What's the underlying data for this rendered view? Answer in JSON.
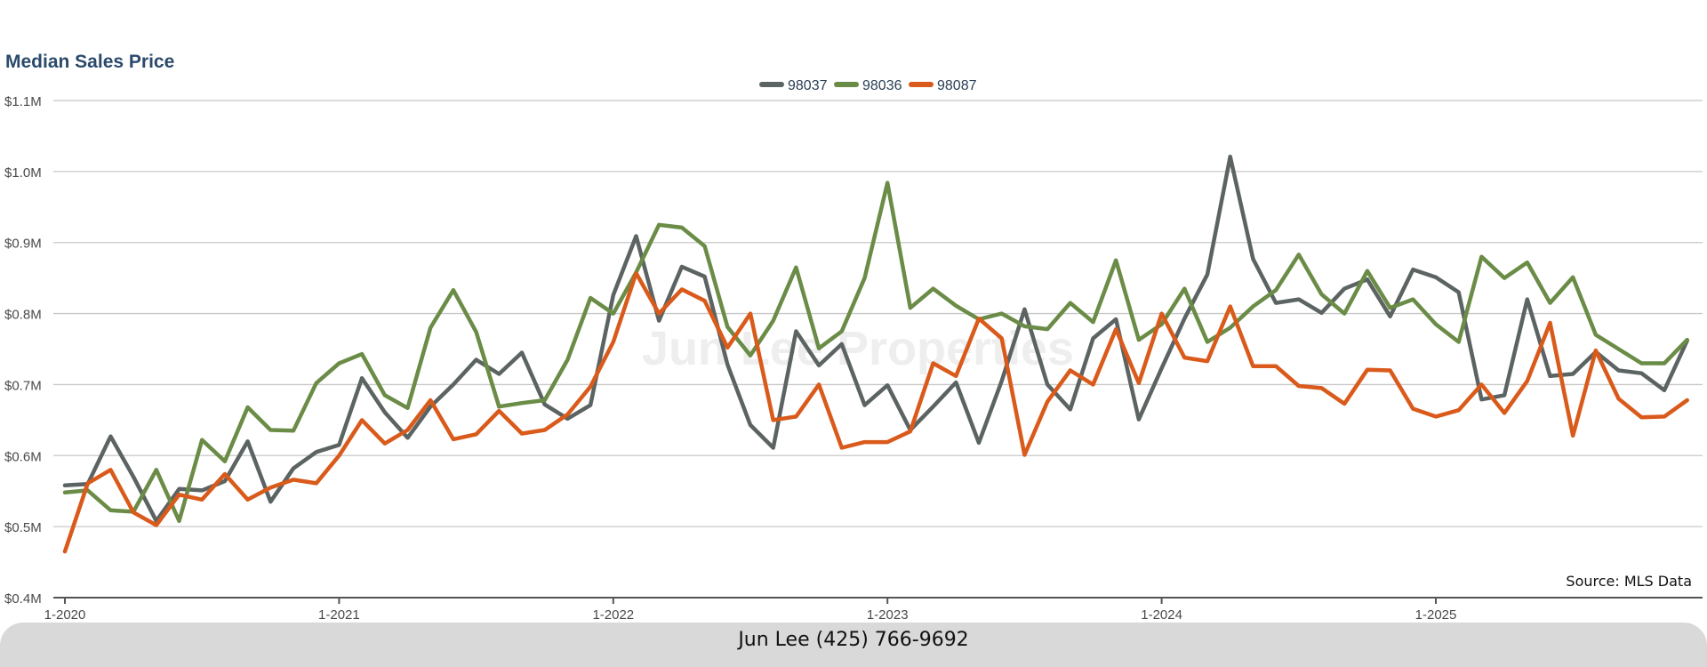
{
  "chart_data": {
    "type": "line",
    "title": "Median Sales Price",
    "source": "Source: MLS Data",
    "watermark": "Jun Lee Properties",
    "xlabel": "",
    "ylabel": "",
    "ylim": [
      0.4,
      1.1
    ],
    "y_ticks": [
      {
        "value": 1.1,
        "label": "$1.1M"
      },
      {
        "value": 1.0,
        "label": "$1.0M"
      },
      {
        "value": 0.9,
        "label": "$0.9M"
      },
      {
        "value": 0.8,
        "label": "$0.8M"
      },
      {
        "value": 0.7,
        "label": "$0.7M"
      },
      {
        "value": 0.6,
        "label": "$0.6M"
      },
      {
        "value": 0.5,
        "label": "$0.5M"
      },
      {
        "value": 0.4,
        "label": "$0.4M"
      }
    ],
    "x_ticks": [
      {
        "index": 0,
        "label": "1-2020"
      },
      {
        "index": 12,
        "label": "1-2021"
      },
      {
        "index": 24,
        "label": "1-2022"
      },
      {
        "index": 36,
        "label": "1-2023"
      },
      {
        "index": 48,
        "label": "1-2024"
      },
      {
        "index": 60,
        "label": "1-2025"
      }
    ],
    "x_range": [
      0,
      71.8
    ],
    "grid": true,
    "legend_position": "top-center",
    "series": [
      {
        "name": "98037",
        "color": "#5c6363",
        "values": [
          0.558,
          0.56,
          0.627,
          0.57,
          0.508,
          0.553,
          0.551,
          0.564,
          0.62,
          0.535,
          0.582,
          0.605,
          0.615,
          0.709,
          0.661,
          0.625,
          0.669,
          0.7,
          0.735,
          0.715,
          0.745,
          0.672,
          0.652,
          0.671,
          0.826,
          0.909,
          0.79,
          0.866,
          0.852,
          0.728,
          0.643,
          0.611,
          0.775,
          0.727,
          0.757,
          0.671,
          0.699,
          0.636,
          0.669,
          0.703,
          0.618,
          0.705,
          0.806,
          0.7,
          0.665,
          0.765,
          0.792,
          0.651,
          0.723,
          0.793,
          0.855,
          1.021,
          0.877,
          0.815,
          0.82,
          0.801,
          0.835,
          0.848,
          0.796,
          0.862,
          0.851,
          0.83,
          0.679,
          0.685,
          0.82,
          0.712,
          0.715,
          0.746,
          0.72,
          0.716,
          0.692,
          0.762
        ]
      },
      {
        "name": "98036",
        "color": "#6a8c46",
        "values": [
          0.548,
          0.551,
          0.523,
          0.521,
          0.58,
          0.508,
          0.622,
          0.592,
          0.668,
          0.636,
          0.635,
          0.702,
          0.73,
          0.743,
          0.685,
          0.667,
          0.78,
          0.833,
          0.774,
          0.669,
          0.674,
          0.678,
          0.735,
          0.822,
          0.8,
          0.858,
          0.925,
          0.921,
          0.895,
          0.781,
          0.741,
          0.79,
          0.865,
          0.751,
          0.775,
          0.85,
          0.984,
          0.808,
          0.835,
          0.811,
          0.792,
          0.8,
          0.782,
          0.778,
          0.815,
          0.788,
          0.875,
          0.763,
          0.785,
          0.835,
          0.76,
          0.78,
          0.81,
          0.833,
          0.883,
          0.827,
          0.8,
          0.86,
          0.808,
          0.82,
          0.785,
          0.76,
          0.88,
          0.85,
          0.872,
          0.815,
          0.851,
          0.77,
          0.75,
          0.73,
          0.73,
          0.763
        ]
      },
      {
        "name": "98087",
        "color": "#d95a1a",
        "values": [
          0.465,
          0.561,
          0.58,
          0.52,
          0.502,
          0.545,
          0.538,
          0.574,
          0.538,
          0.555,
          0.566,
          0.561,
          0.6,
          0.65,
          0.617,
          0.636,
          0.678,
          0.623,
          0.63,
          0.663,
          0.631,
          0.636,
          0.658,
          0.697,
          0.76,
          0.857,
          0.8,
          0.834,
          0.818,
          0.752,
          0.8,
          0.65,
          0.655,
          0.7,
          0.611,
          0.619,
          0.619,
          0.634,
          0.73,
          0.712,
          0.793,
          0.765,
          0.601,
          0.676,
          0.72,
          0.7,
          0.778,
          0.702,
          0.8,
          0.738,
          0.733,
          0.81,
          0.726,
          0.726,
          0.698,
          0.695,
          0.673,
          0.721,
          0.72,
          0.666,
          0.655,
          0.664,
          0.7,
          0.66,
          0.705,
          0.787,
          0.628,
          0.748,
          0.68,
          0.654,
          0.655,
          0.678
        ]
      }
    ]
  },
  "footer": {
    "text": "Jun Lee (425) 766-9692"
  }
}
